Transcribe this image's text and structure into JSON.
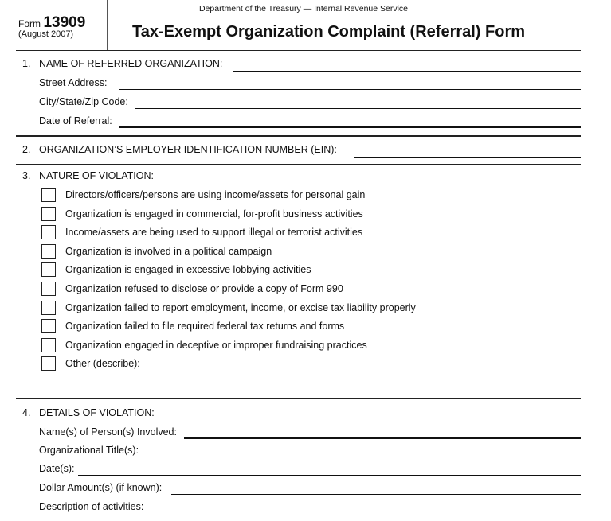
{
  "header": {
    "form_prefix": "Form",
    "form_number": "13909",
    "form_date": "(August 2007)",
    "agency": "Department of the Treasury — Internal Revenue Service",
    "title": "Tax-Exempt Organization Complaint (Referral) Form"
  },
  "section1": {
    "number": "1.",
    "heading": "NAME OF REFERRED ORGANIZATION:",
    "street": "Street Address:",
    "city": "City/State/Zip Code:",
    "date": "Date of Referral:"
  },
  "section2": {
    "number": "2.",
    "heading": "ORGANIZATION’S EMPLOYER IDENTIFICATION NUMBER (EIN):"
  },
  "section3": {
    "number": "3.",
    "heading": "NATURE OF VIOLATION:",
    "options": [
      {
        "label": "Directors/officers/persons are using income/assets for personal gain",
        "checked": false
      },
      {
        "label": "Organization is engaged in commercial, for-profit business activities",
        "checked": false
      },
      {
        "label": "Income/assets are being used to support illegal or terrorist activities",
        "checked": false
      },
      {
        "label": "Organization is involved in a political campaign",
        "checked": false
      },
      {
        "label": "Organization is engaged in excessive lobbying activities",
        "checked": false
      },
      {
        "label": "Organization refused to disclose or provide a copy of Form 990",
        "checked": false
      },
      {
        "label": "Organization failed to report employment, income, or excise tax liability properly",
        "checked": false
      },
      {
        "label": "Organization failed to file required federal tax returns and forms",
        "checked": false
      },
      {
        "label": "Organization engaged in deceptive or improper fundraising practices",
        "checked": false
      },
      {
        "label": "Other (describe):",
        "checked": false
      }
    ]
  },
  "section4": {
    "number": "4.",
    "heading": "DETAILS OF VIOLATION:",
    "persons": "Name(s) of Person(s) Involved:",
    "titles": "Organizational Title(s):",
    "dates": "Date(s):",
    "dollars": "Dollar Amount(s) (if known):",
    "description": "Description of activities:"
  }
}
